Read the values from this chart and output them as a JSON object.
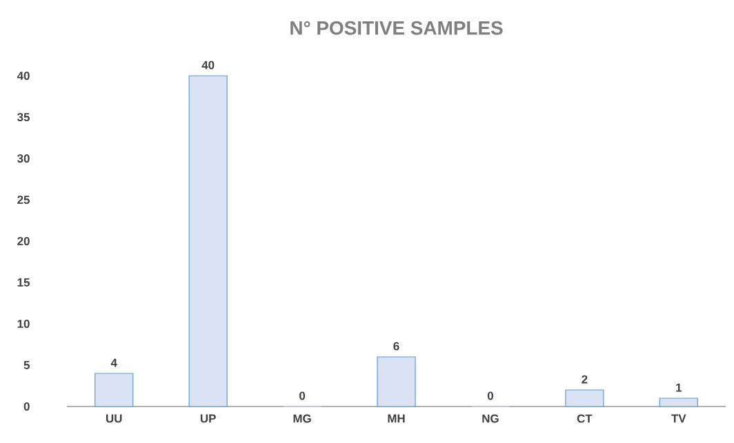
{
  "chart_data": {
    "type": "bar",
    "title": "N° POSITIVE SAMPLES",
    "categories": [
      "UU",
      "UP",
      "MG",
      "MH",
      "NG",
      "CT",
      "TV"
    ],
    "values": [
      4,
      40,
      0,
      6,
      0,
      2,
      1
    ],
    "color": "#dae3f3",
    "ylim": [
      0,
      40
    ],
    "yticks": [
      0,
      5,
      10,
      15,
      20,
      25,
      30,
      35,
      40
    ],
    "data_labels": true
  }
}
